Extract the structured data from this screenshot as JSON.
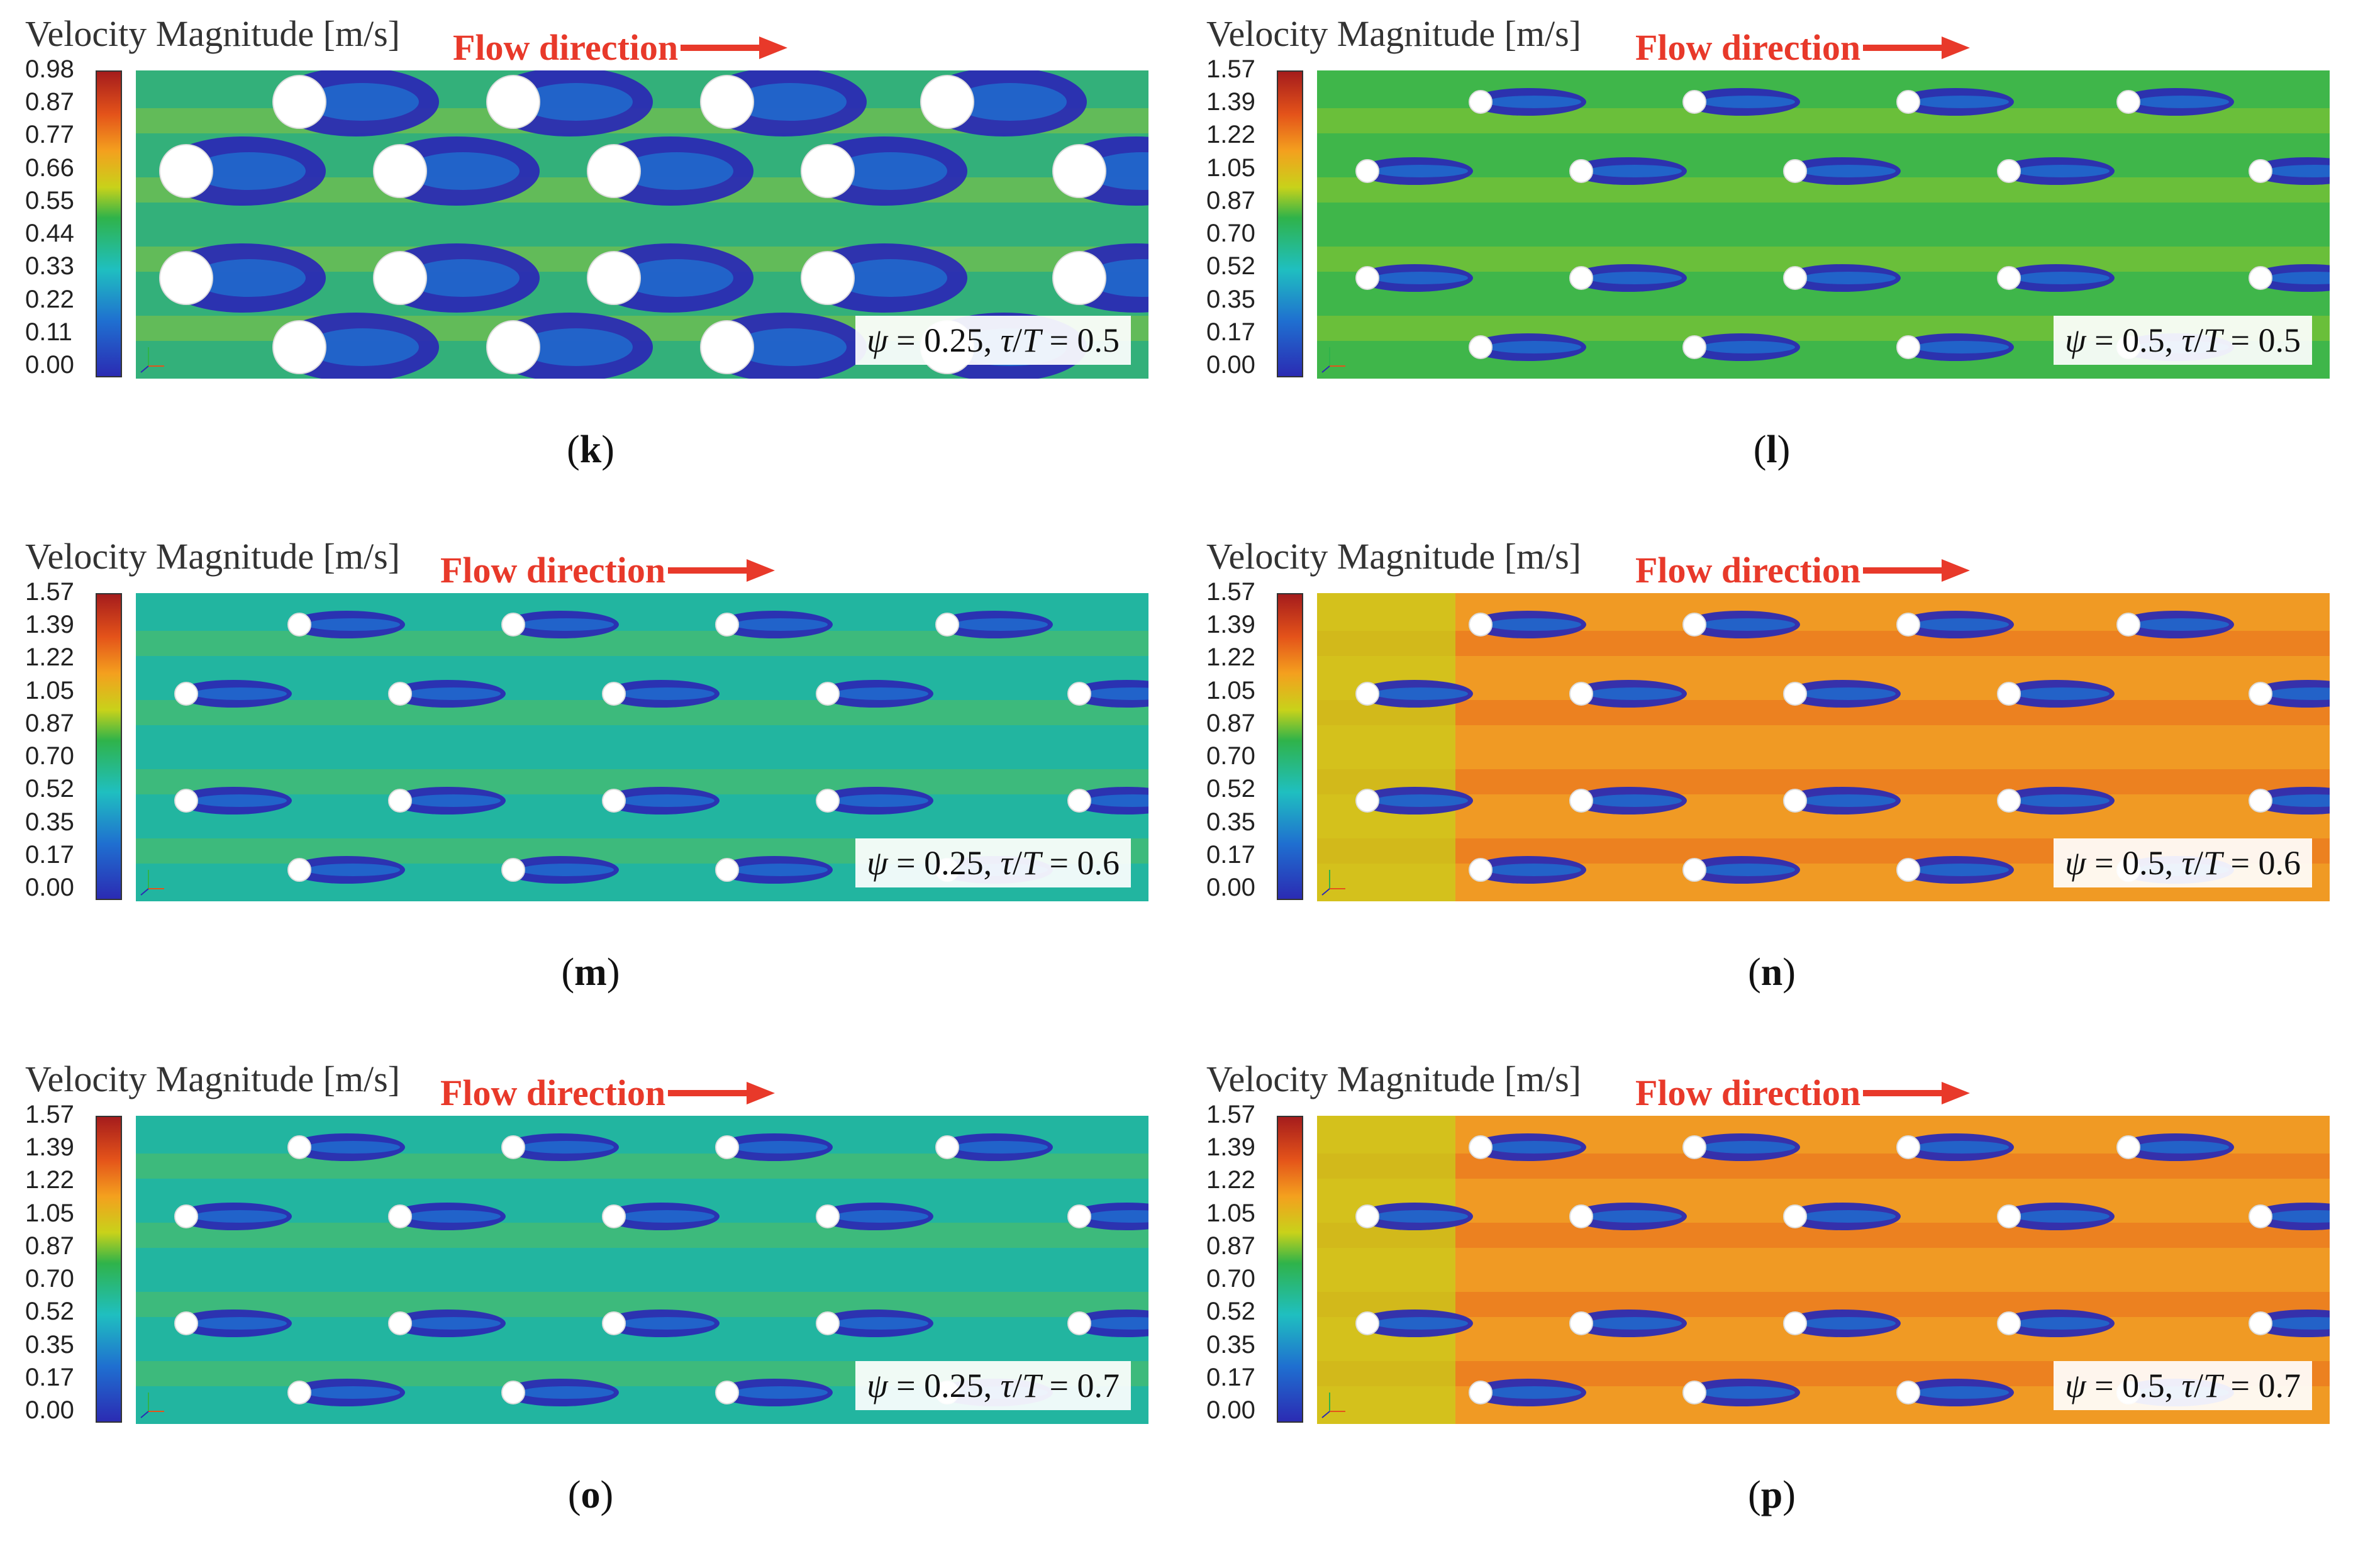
{
  "legend_title": "Velocity Magnitude [m/s]",
  "flow_label": "Flow direction",
  "colors": {
    "arrow": "#e8392a",
    "low": "#2b2bb3",
    "mid": "#2fb34a",
    "high": "#a51c1c"
  },
  "panels": [
    {
      "label": "k",
      "ticks": [
        "0.98",
        "0.87",
        "0.77",
        "0.66",
        "0.55",
        "0.44",
        "0.33",
        "0.22",
        "0.11",
        "0.00"
      ],
      "psi": "0.25",
      "tau": "0.5",
      "field_style": "large-cylinders"
    },
    {
      "label": "l",
      "ticks": [
        "1.57",
        "1.39",
        "1.22",
        "1.05",
        "0.87",
        "0.70",
        "0.52",
        "0.35",
        "0.17",
        "0.00"
      ],
      "psi": "0.5",
      "tau": "0.5",
      "field_style": "green"
    },
    {
      "label": "m",
      "ticks": [
        "1.57",
        "1.39",
        "1.22",
        "1.05",
        "0.87",
        "0.70",
        "0.52",
        "0.35",
        "0.17",
        "0.00"
      ],
      "psi": "0.25",
      "tau": "0.6",
      "field_style": "teal"
    },
    {
      "label": "n",
      "ticks": [
        "1.57",
        "1.39",
        "1.22",
        "1.05",
        "0.87",
        "0.70",
        "0.52",
        "0.35",
        "0.17",
        "0.00"
      ],
      "psi": "0.5",
      "tau": "0.6",
      "field_style": "orange"
    },
    {
      "label": "o",
      "ticks": [
        "1.57",
        "1.39",
        "1.22",
        "1.05",
        "0.87",
        "0.70",
        "0.52",
        "0.35",
        "0.17",
        "0.00"
      ],
      "psi": "0.25",
      "tau": "0.7",
      "field_style": "teal"
    },
    {
      "label": "p",
      "ticks": [
        "1.57",
        "1.39",
        "1.22",
        "1.05",
        "0.87",
        "0.70",
        "0.52",
        "0.35",
        "0.17",
        "0.00"
      ],
      "psi": "0.5",
      "tau": "0.7",
      "field_style": "orange"
    }
  ]
}
